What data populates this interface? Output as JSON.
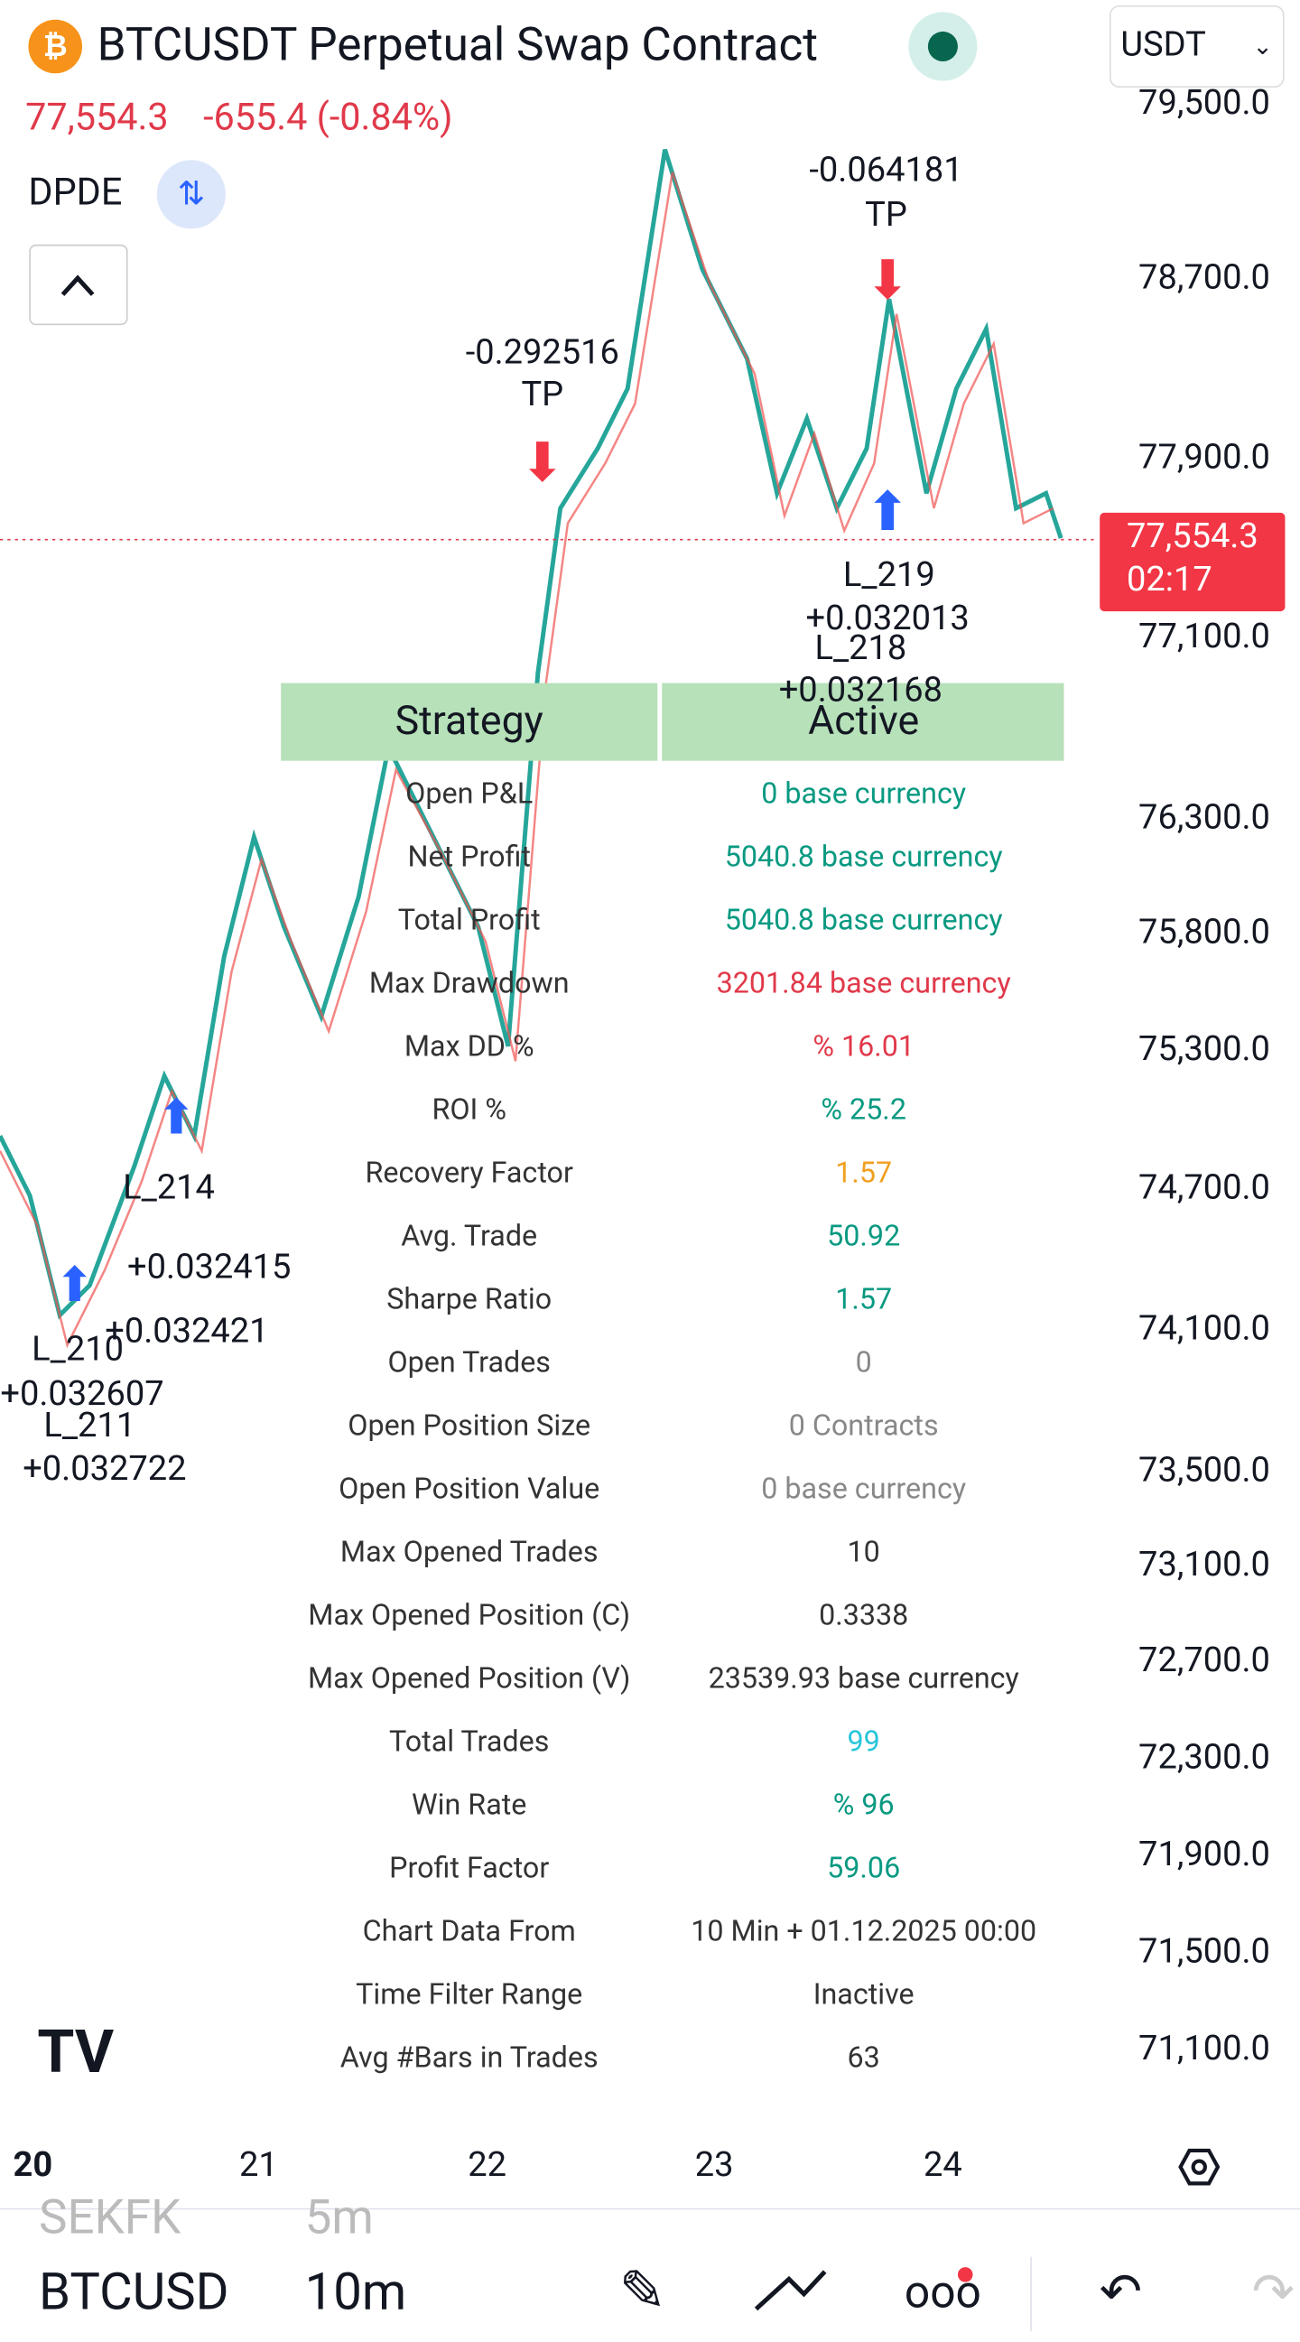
{
  "header": {
    "symbol": "BTCUSDT Perpetual Swap Contract",
    "currency": "USDT",
    "price": "77,554.3",
    "change": "-655.4 (-0.84%)",
    "indicator": "DPDE"
  },
  "price_axis": [
    "79,500.0",
    "78,700.0",
    "77,900.0",
    "77,100.0",
    "76,300.0",
    "75,800.0",
    "75,300.0",
    "74,700.0",
    "74,100.0",
    "73,500.0",
    "73,100.0",
    "72,700.0",
    "72,300.0",
    "71,900.0",
    "71,500.0",
    "71,100.0"
  ],
  "price_tag": {
    "price": "77,554.3",
    "timer": "02:17"
  },
  "annotations": [
    "-0.064181",
    "TP",
    "-0.292516",
    "TP",
    "L_219",
    "+0.032013",
    "L_218",
    "+0.032168",
    "L_214",
    "+0.032415",
    "+0.032421",
    "L_210",
    "+0.032607",
    "L_211",
    "+0.032722"
  ],
  "table": {
    "header": [
      "Strategy",
      "Active"
    ],
    "rows": [
      {
        "label": "Open P&L",
        "value": "0 base currency",
        "color": "#089981"
      },
      {
        "label": "Net Profit",
        "value": "5040.8 base currency",
        "color": "#089981"
      },
      {
        "label": "Total Profit",
        "value": "5040.8 base currency",
        "color": "#089981"
      },
      {
        "label": "Max Drawdown",
        "value": "3201.84 base currency",
        "color": "#e0394a"
      },
      {
        "label": "Max DD %",
        "value": "% 16.01",
        "color": "#e0394a"
      },
      {
        "label": "ROI %",
        "value": "% 25.2",
        "color": "#089981"
      },
      {
        "label": "Recovery Factor",
        "value": "1.57",
        "color": "#f0a020"
      },
      {
        "label": "Avg. Trade",
        "value": "50.92",
        "color": "#089981"
      },
      {
        "label": "Sharpe Ratio",
        "value": "1.57",
        "color": "#089981"
      },
      {
        "label": "Open Trades",
        "value": "0",
        "color": "#888888"
      },
      {
        "label": "Open Position Size",
        "value": "0 Contracts",
        "color": "#888888"
      },
      {
        "label": "Open Position Value",
        "value": "0 base currency",
        "color": "#888888"
      },
      {
        "label": "Max Opened Trades",
        "value": "10",
        "color": "#333333"
      },
      {
        "label": "Max Opened Position (C)",
        "value": "0.3338",
        "color": "#333333"
      },
      {
        "label": "Max Opened Position (V)",
        "value": "23539.93 base currency",
        "color": "#333333"
      },
      {
        "label": "Total Trades",
        "value": "99",
        "color": "#26c6da"
      },
      {
        "label": "Win Rate",
        "value": "% 96",
        "color": "#089981"
      },
      {
        "label": "Profit Factor",
        "value": "59.06",
        "color": "#089981"
      },
      {
        "label": "Chart Data From",
        "value": "10 Min + 01.12.2025 00:00",
        "color": "#333333"
      },
      {
        "label": "Time Filter Range",
        "value": "Inactive",
        "color": "#333333"
      },
      {
        "label": "Avg #Bars in Trades",
        "value": "63",
        "color": "#333333"
      }
    ]
  },
  "time_axis": [
    "20",
    "21",
    "22",
    "23",
    "24"
  ],
  "bottom_bar": {
    "prev_symbol": "SEKFK",
    "prev_interval": "5m",
    "symbol": "BTCUSD",
    "interval": "10m"
  }
}
